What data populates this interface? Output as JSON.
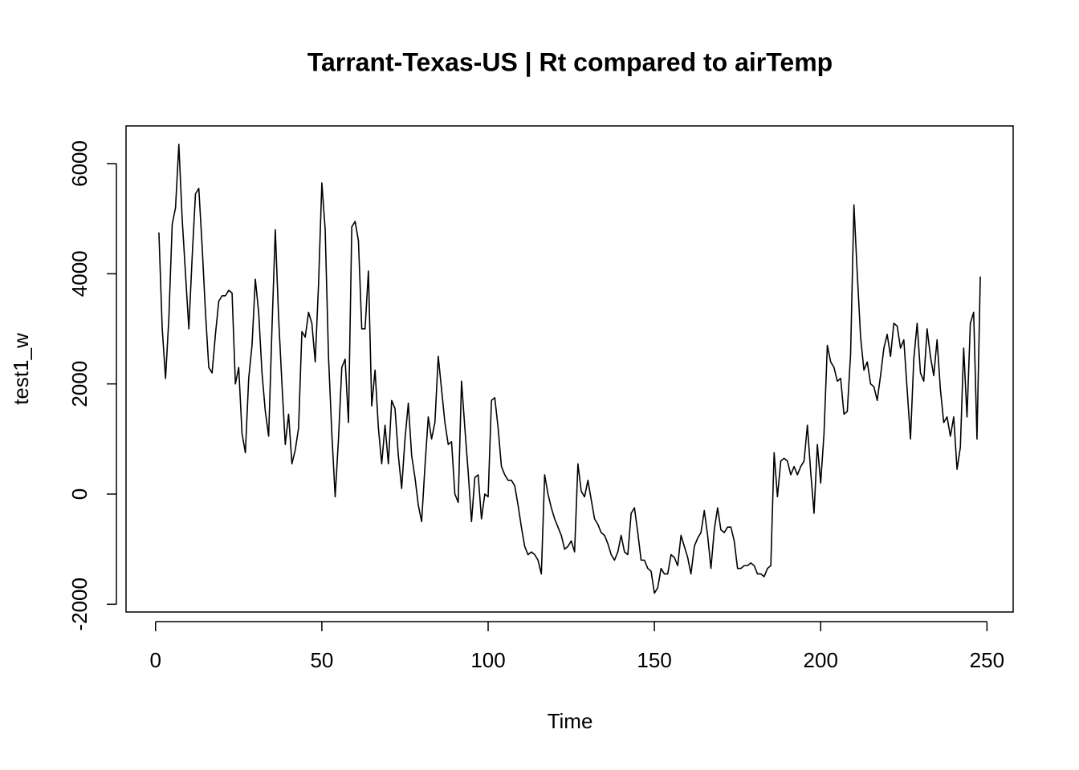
{
  "chart_data": {
    "type": "line",
    "title": "Tarrant-Texas-US | Rt compared to airTemp",
    "x_label": "Time",
    "y_label": "test1_w",
    "xlim": [
      -8.88,
      257.88
    ],
    "ylim": [
      -2141,
      6684
    ],
    "xticks": [
      0,
      50,
      100,
      150,
      200,
      250
    ],
    "yticks": [
      -2000,
      0,
      2000,
      4000,
      6000
    ],
    "x": [
      1,
      2,
      3,
      4,
      5,
      6,
      7,
      8,
      9,
      10,
      11,
      12,
      13,
      14,
      15,
      16,
      17,
      18,
      19,
      20,
      21,
      22,
      23,
      24,
      25,
      26,
      27,
      28,
      29,
      30,
      31,
      32,
      33,
      34,
      35,
      36,
      37,
      38,
      39,
      40,
      41,
      42,
      43,
      44,
      45,
      46,
      47,
      48,
      49,
      50,
      51,
      52,
      53,
      54,
      55,
      56,
      57,
      58,
      59,
      60,
      61,
      62,
      63,
      64,
      65,
      66,
      67,
      68,
      69,
      70,
      71,
      72,
      73,
      74,
      75,
      76,
      77,
      78,
      79,
      80,
      81,
      82,
      83,
      84,
      85,
      86,
      87,
      88,
      89,
      90,
      91,
      92,
      93,
      94,
      95,
      96,
      97,
      98,
      99,
      100,
      101,
      102,
      103,
      104,
      105,
      106,
      107,
      108,
      109,
      110,
      111,
      112,
      113,
      114,
      115,
      116,
      117,
      118,
      119,
      120,
      121,
      122,
      123,
      124,
      125,
      126,
      127,
      128,
      129,
      130,
      131,
      132,
      133,
      134,
      135,
      136,
      137,
      138,
      139,
      140,
      141,
      142,
      143,
      144,
      145,
      146,
      147,
      148,
      149,
      150,
      151,
      152,
      153,
      154,
      155,
      156,
      157,
      158,
      159,
      160,
      161,
      162,
      163,
      164,
      165,
      166,
      167,
      168,
      169,
      170,
      171,
      172,
      173,
      174,
      175,
      176,
      177,
      178,
      179,
      180,
      181,
      182,
      183,
      184,
      185,
      186,
      187,
      188,
      189,
      190,
      191,
      192,
      193,
      194,
      195,
      196,
      197,
      198,
      199,
      200,
      201,
      202,
      203,
      204,
      205,
      206,
      207,
      208,
      209,
      210,
      211,
      212,
      213,
      214,
      215,
      216,
      217,
      218,
      219,
      220,
      221,
      222,
      223,
      224,
      225,
      226,
      227,
      228,
      229,
      230,
      231,
      232,
      233,
      234,
      235,
      236,
      237,
      238,
      239,
      240,
      241,
      242,
      243,
      244,
      245,
      246,
      247,
      248
    ],
    "series": [
      {
        "color": "#000000",
        "values": [
          4750,
          3000,
          2100,
          3200,
          4900,
          5200,
          6350,
          5000,
          4000,
          3000,
          4300,
          5450,
          5550,
          4500,
          3300,
          2300,
          2200,
          2900,
          3500,
          3600,
          3600,
          3700,
          3650,
          2000,
          2300,
          1100,
          750,
          2100,
          2700,
          3900,
          3300,
          2200,
          1500,
          1050,
          3000,
          4800,
          3200,
          2000,
          900,
          1450,
          550,
          800,
          1200,
          2950,
          2850,
          3300,
          3100,
          2400,
          3800,
          5650,
          4800,
          2500,
          1100,
          -50,
          1000,
          2300,
          2450,
          1300,
          4850,
          4950,
          4600,
          3000,
          3000,
          4050,
          1600,
          2250,
          1200,
          550,
          1250,
          550,
          1700,
          1550,
          700,
          100,
          1000,
          1650,
          700,
          300,
          -200,
          -500,
          500,
          1400,
          1000,
          1300,
          2500,
          1900,
          1300,
          900,
          950,
          0,
          -150,
          2050,
          1200,
          400,
          -500,
          300,
          350,
          -450,
          0,
          -50,
          1700,
          1750,
          1200,
          500,
          350,
          250,
          250,
          150,
          -200,
          -600,
          -950,
          -1100,
          -1050,
          -1100,
          -1200,
          -1450,
          350,
          0,
          -250,
          -450,
          -600,
          -750,
          -1000,
          -950,
          -850,
          -1050,
          550,
          50,
          -50,
          250,
          -100,
          -450,
          -550,
          -700,
          -750,
          -900,
          -1100,
          -1200,
          -1050,
          -750,
          -1050,
          -1100,
          -350,
          -250,
          -700,
          -1200,
          -1200,
          -1350,
          -1400,
          -1800,
          -1700,
          -1350,
          -1450,
          -1450,
          -1100,
          -1150,
          -1300,
          -750,
          -950,
          -1150,
          -1450,
          -950,
          -800,
          -700,
          -300,
          -750,
          -1350,
          -650,
          -250,
          -650,
          -700,
          -600,
          -600,
          -850,
          -1350,
          -1350,
          -1300,
          -1300,
          -1250,
          -1300,
          -1450,
          -1450,
          -1500,
          -1350,
          -1300,
          750,
          -50,
          600,
          650,
          600,
          350,
          500,
          350,
          500,
          600,
          1250,
          400,
          -350,
          900,
          200,
          1100,
          2700,
          2400,
          2300,
          2050,
          2100,
          1450,
          1500,
          2550,
          5250,
          4000,
          2850,
          2250,
          2400,
          2000,
          1950,
          1700,
          2150,
          2650,
          2900,
          2500,
          3100,
          3050,
          2650,
          2800,
          1900,
          1000,
          2450,
          3100,
          2200,
          2050,
          3000,
          2500,
          2150,
          2800,
          1900,
          1300,
          1400,
          1050,
          1400,
          450,
          850,
          2650,
          1400,
          3100,
          3300,
          1000,
          3950
        ]
      }
    ]
  }
}
